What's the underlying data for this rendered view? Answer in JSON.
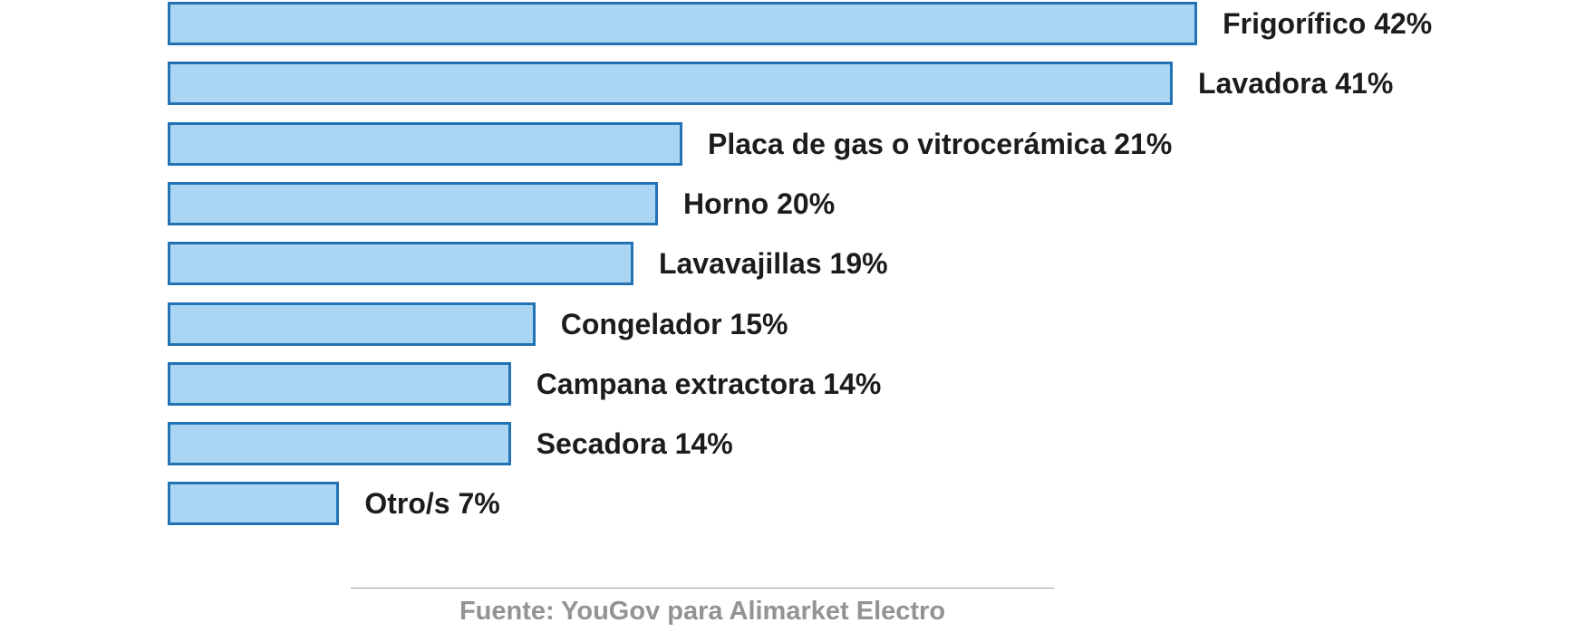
{
  "chart_data": {
    "type": "bar",
    "orientation": "horizontal",
    "categories": [
      "Frigorífico",
      "Lavadora",
      "Placa de gas o vitrocerámica",
      "Horno",
      "Lavavajillas",
      "Congelador",
      "Campana extractora",
      "Secadora",
      "Otro/s"
    ],
    "values": [
      42,
      41,
      21,
      20,
      19,
      15,
      14,
      14,
      7
    ],
    "unit": "%",
    "value_label_position": "outside-end",
    "xlim": [
      0,
      45
    ],
    "grid": false,
    "legend": false,
    "bar_fill_color": "#abd6f3",
    "bar_border_color": "#2272b4",
    "label_text_color": "#1c1c1c",
    "source": "Fuente: YouGov para Alimarket Electro",
    "source_text_color": "#939393",
    "divider_color": "#9b9b9b"
  }
}
